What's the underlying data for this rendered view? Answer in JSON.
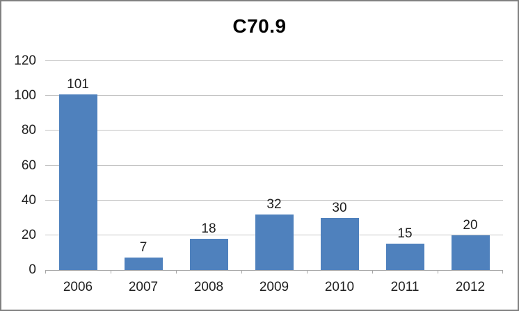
{
  "chart_data": {
    "type": "bar",
    "title": "C70.9",
    "categories": [
      "2006",
      "2007",
      "2008",
      "2009",
      "2010",
      "2011",
      "2012"
    ],
    "values": [
      101,
      7,
      18,
      32,
      30,
      15,
      20
    ],
    "xlabel": "",
    "ylabel": "",
    "ylim": [
      0,
      120
    ],
    "y_ticks": [
      0,
      20,
      40,
      60,
      80,
      100,
      120
    ],
    "grid": true,
    "legend": "none",
    "data_labels": true
  },
  "colors": {
    "bar": "#4f81bd",
    "gridline": "#c3c3c3",
    "axis_line": "#a6a6a6",
    "text": "#1f1f1f",
    "title_text": "#000000",
    "frame_border": "#808080",
    "background": "#ffffff"
  }
}
